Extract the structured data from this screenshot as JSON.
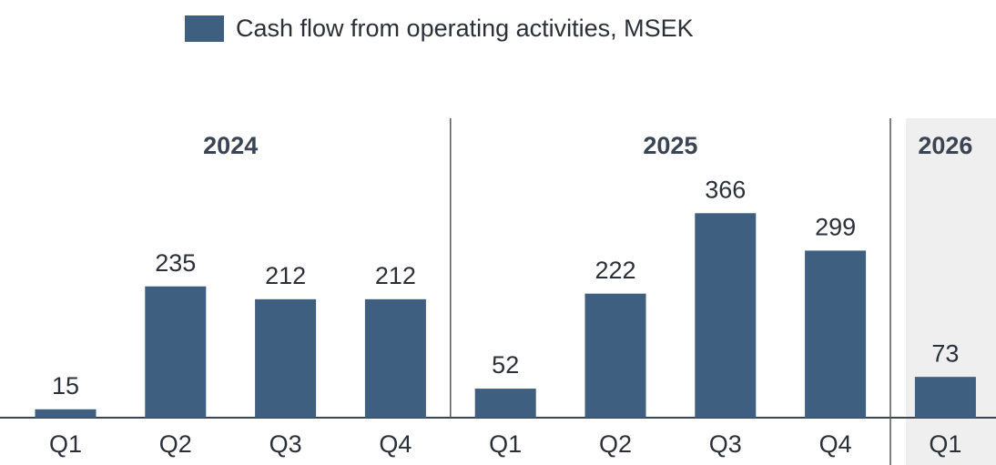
{
  "chart_data": {
    "type": "bar",
    "groups": [
      {
        "name": "2024",
        "categories": [
          "Q1",
          "Q2",
          "Q3",
          "Q4"
        ]
      },
      {
        "name": "2025",
        "categories": [
          "Q1",
          "Q2",
          "Q3",
          "Q4"
        ]
      },
      {
        "name": "2026",
        "categories": [
          "Q1"
        ]
      }
    ],
    "series": [
      {
        "name": "Cash flow from operating activities, MSEK",
        "color": "#3f5f80",
        "values": [
          15,
          235,
          212,
          212,
          52,
          222,
          366,
          299,
          73
        ]
      }
    ]
  }
}
